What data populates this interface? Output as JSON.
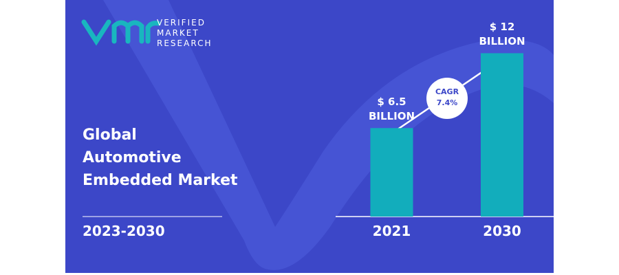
{
  "brand": [
    "VERIFIED",
    "MARKET",
    "RESEARCH"
  ],
  "chart_data": {
    "type": "bar",
    "title_lines": [
      "Global",
      "Automotive",
      "Embedded Market"
    ],
    "subtitle": "2023-2030",
    "categories": [
      "2021",
      "2030"
    ],
    "values": [
      6.5,
      12
    ],
    "value_labels": [
      "$ 6.5 BILLION",
      "$ 12 BILLION"
    ],
    "color": "#12adbc",
    "annotation": {
      "label": "CAGR",
      "value": "7.4%"
    }
  }
}
